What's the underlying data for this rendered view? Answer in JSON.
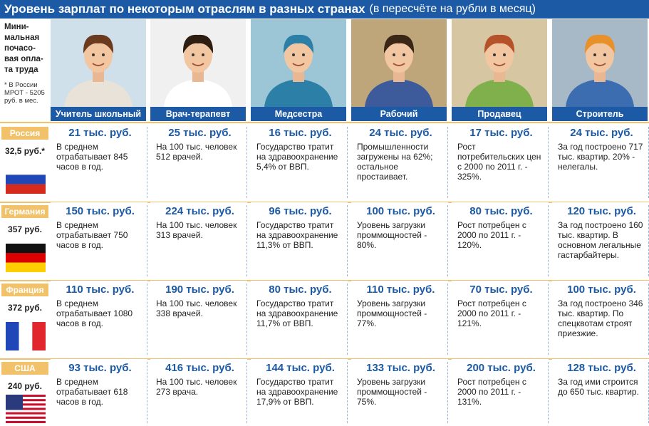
{
  "title": "Уровень зарплат по некоторым отраслям в разных странах",
  "subtitle": "(в пересчёте на рубли в месяц)",
  "legend": {
    "label": "Мини-мальная почасо-вая опла-та труда",
    "note": "* В России МРОТ - 5205 руб. в мес."
  },
  "professions": [
    "Учитель школьный",
    "Врач-терапевт",
    "Медсестра",
    "Рабочий",
    "Продавец",
    "Строитель"
  ],
  "colors": {
    "accent": "#1c5aa6",
    "country_tab": "#f2c26b"
  },
  "chart_data": {
    "type": "table",
    "title": "Уровень зарплат по некоторым отраслям в разных странах",
    "subtitle": "(в пересчёте на рубли в месяц)",
    "columns": [
      "Учитель школьный",
      "Врач-терапевт",
      "Медсестра",
      "Рабочий",
      "Продавец",
      "Строитель"
    ],
    "rows": [
      {
        "country": "Россия",
        "min_wage": "32,5 руб.*",
        "flag": "russia-flag",
        "salaries": [
          "21 тыс. руб.",
          "25 тыс. руб.",
          "16 тыс. руб.",
          "24 тыс. руб.",
          "17 тыс. руб.",
          "24 тыс. руб."
        ],
        "notes": [
          "В среднем отрабатывает 845 часов в год.",
          "На 100 тыс. человек 512 врачей.",
          "Государство тратит на здравоохранение 5,4% от ВВП.",
          "Промышленности загружены на 62%; остальное простаивает.",
          "Рост потребительских цен с 2000 по 2011 г. - 325%.",
          "За год построено 717 тыс. квартир. 20% - нелегалы."
        ]
      },
      {
        "country": "Германия",
        "min_wage": "357 руб.",
        "flag": "germany-flag",
        "salaries": [
          "150 тыс. руб.",
          "224 тыс. руб.",
          "96 тыс. руб.",
          "100 тыс. руб.",
          "80 тыс. руб.",
          "120 тыс. руб."
        ],
        "notes": [
          "В среднем отрабатывает 750 часов в год.",
          "На 100 тыс. человек 313 врачей.",
          "Государство тратит на здравоохранение 11,3% от ВВП.",
          "Уровень загрузки проммощностей - 80%.",
          "Рост потребцен с 2000 по 2011 г. - 120%.",
          "За год построено 160 тыс. квартир. В основном легальные гастарбайтеры."
        ]
      },
      {
        "country": "Франция",
        "min_wage": "372 руб.",
        "flag": "france-flag",
        "salaries": [
          "110 тыс. руб.",
          "190 тыс. руб.",
          "80 тыс. руб.",
          "110 тыс. руб.",
          "70 тыс. руб.",
          "100 тыс. руб."
        ],
        "notes": [
          "В среднем отрабатывает 1080 часов в год.",
          "На 100 тыс. человек 338 врачей.",
          "Государство тратит на здравоохранение 11,7% от ВВП.",
          "Уровень загрузки проммощностей - 77%.",
          "Рост потребцен с 2000 по 2011 г. - 121%.",
          "За год построено 346 тыс. квартир. По спецквотам строят приезжие."
        ]
      },
      {
        "country": "США",
        "min_wage": "240 руб.",
        "flag": "usa-flag",
        "salaries": [
          "93 тыс. руб.",
          "416 тыс. руб.",
          "144 тыс. руб.",
          "133 тыс. руб.",
          "200 тыс. руб.",
          "128 тыс. руб."
        ],
        "notes": [
          "В среднем отрабатывает 618 часов в год.",
          "На 100 тыс. человек 273 врача.",
          "Государство тратит на здравоохранение 17,9% от ВВП.",
          "Уровень загрузки проммощностей - 75%.",
          "Рост потребцен с 2000 по 2011 г. - 131%.",
          "За год ими строится до 650 тыс. квартир."
        ]
      }
    ]
  }
}
